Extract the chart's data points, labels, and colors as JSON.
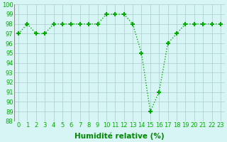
{
  "x": [
    0,
    1,
    2,
    3,
    4,
    5,
    6,
    7,
    8,
    9,
    10,
    11,
    12,
    13,
    14,
    15,
    16,
    17,
    18,
    19,
    20,
    21,
    22,
    23
  ],
  "y": [
    97,
    98,
    97,
    97,
    98,
    98,
    98,
    98,
    98,
    98,
    99,
    99,
    99,
    98,
    95,
    89,
    91,
    96,
    97,
    98,
    98,
    98,
    98,
    98
  ],
  "line_color": "#00aa00",
  "marker": "+",
  "marker_size": 5,
  "marker_lw": 1.5,
  "bg_color": "#d8f5f5",
  "grid_color": "#aacccc",
  "xlabel": "Humidité relative (%)",
  "xlabel_color": "#008800",
  "xlabel_fontsize": 7.5,
  "tick_color": "#00aa00",
  "tick_fontsize": 6,
  "ytick_fontsize": 6,
  "ylim": [
    88,
    100
  ],
  "xlim": [
    -0.5,
    23.5
  ],
  "yticks": [
    88,
    89,
    90,
    91,
    92,
    93,
    94,
    95,
    96,
    97,
    98,
    99,
    100
  ],
  "xticks": [
    0,
    1,
    2,
    3,
    4,
    5,
    6,
    7,
    8,
    9,
    10,
    11,
    12,
    13,
    14,
    15,
    16,
    17,
    18,
    19,
    20,
    21,
    22,
    23
  ]
}
